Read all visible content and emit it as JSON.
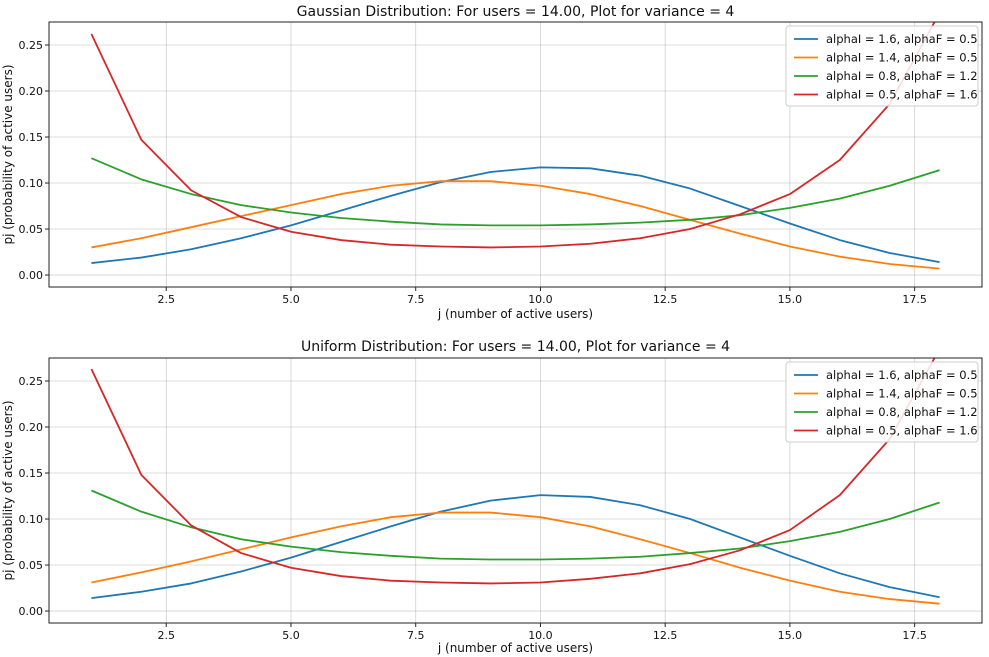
{
  "chart_data": [
    {
      "type": "line",
      "title": "Gaussian Distribution: For users = 14.00, Plot for variance = 4",
      "xlabel": "j (number of active users)",
      "ylabel": "pj (probability of active users)",
      "xlim": [
        0.15,
        18.85
      ],
      "ylim": [
        -0.013,
        0.275
      ],
      "xticks": [
        "2.5",
        "5.0",
        "7.5",
        "10.0",
        "12.5",
        "15.0",
        "17.5"
      ],
      "yticks": [
        "0.00",
        "0.05",
        "0.10",
        "0.15",
        "0.20",
        "0.25"
      ],
      "grid": true,
      "legend_position": "top-right",
      "x": [
        1,
        2,
        3,
        4,
        5,
        6,
        7,
        8,
        9,
        10,
        11,
        12,
        13,
        14,
        15,
        16,
        17,
        18
      ],
      "series": [
        {
          "name": "alphaI = 1.6, alphaF = 0.5",
          "color": "#1f77b4",
          "values": [
            0.013,
            0.019,
            0.028,
            0.04,
            0.054,
            0.07,
            0.086,
            0.101,
            0.112,
            0.117,
            0.116,
            0.108,
            0.094,
            0.075,
            0.056,
            0.038,
            0.024,
            0.014
          ]
        },
        {
          "name": "alphaI = 1.4, alphaF = 0.5",
          "color": "#ff7f0e",
          "values": [
            0.03,
            0.04,
            0.052,
            0.064,
            0.076,
            0.088,
            0.097,
            0.102,
            0.102,
            0.097,
            0.088,
            0.075,
            0.06,
            0.045,
            0.031,
            0.02,
            0.012,
            0.007
          ]
        },
        {
          "name": "alphaI = 0.8, alphaF = 1.2",
          "color": "#2ca02c",
          "values": [
            0.127,
            0.104,
            0.088,
            0.076,
            0.068,
            0.062,
            0.058,
            0.055,
            0.054,
            0.054,
            0.055,
            0.057,
            0.06,
            0.065,
            0.073,
            0.083,
            0.097,
            0.114
          ]
        },
        {
          "name": "alphaI = 0.5, alphaF = 1.6",
          "color": "#d62728",
          "values": [
            0.262,
            0.147,
            0.092,
            0.063,
            0.047,
            0.038,
            0.033,
            0.031,
            0.03,
            0.031,
            0.034,
            0.04,
            0.05,
            0.066,
            0.088,
            0.125,
            0.186,
            0.285
          ]
        }
      ]
    },
    {
      "type": "line",
      "title": "Uniform Distribution: For users = 14.00, Plot for variance = 4",
      "xlabel": "j (number of active users)",
      "ylabel": "pj (probability of active users)",
      "xlim": [
        0.15,
        18.85
      ],
      "ylim": [
        -0.013,
        0.275
      ],
      "xticks": [
        "2.5",
        "5.0",
        "7.5",
        "10.0",
        "12.5",
        "15.0",
        "17.5"
      ],
      "yticks": [
        "0.00",
        "0.05",
        "0.10",
        "0.15",
        "0.20",
        "0.25"
      ],
      "grid": true,
      "legend_position": "top-right",
      "x": [
        1,
        2,
        3,
        4,
        5,
        6,
        7,
        8,
        9,
        10,
        11,
        12,
        13,
        14,
        15,
        16,
        17,
        18
      ],
      "series": [
        {
          "name": "alphaI = 1.6, alphaF = 0.5",
          "color": "#1f77b4",
          "values": [
            0.014,
            0.021,
            0.03,
            0.043,
            0.058,
            0.075,
            0.092,
            0.108,
            0.12,
            0.126,
            0.124,
            0.115,
            0.1,
            0.08,
            0.06,
            0.041,
            0.026,
            0.015
          ]
        },
        {
          "name": "alphaI = 1.4, alphaF = 0.5",
          "color": "#ff7f0e",
          "values": [
            0.031,
            0.042,
            0.054,
            0.067,
            0.08,
            0.092,
            0.102,
            0.107,
            0.107,
            0.102,
            0.092,
            0.078,
            0.063,
            0.047,
            0.033,
            0.021,
            0.013,
            0.008
          ]
        },
        {
          "name": "alphaI = 0.8, alphaF = 1.2",
          "color": "#2ca02c",
          "values": [
            0.131,
            0.108,
            0.091,
            0.078,
            0.07,
            0.064,
            0.06,
            0.057,
            0.056,
            0.056,
            0.057,
            0.059,
            0.063,
            0.068,
            0.076,
            0.086,
            0.1,
            0.118
          ]
        },
        {
          "name": "alphaI = 0.5, alphaF = 1.6",
          "color": "#d62728",
          "values": [
            0.263,
            0.148,
            0.093,
            0.063,
            0.047,
            0.038,
            0.033,
            0.031,
            0.03,
            0.031,
            0.035,
            0.041,
            0.051,
            0.066,
            0.088,
            0.126,
            0.187,
            0.285
          ]
        }
      ]
    }
  ]
}
